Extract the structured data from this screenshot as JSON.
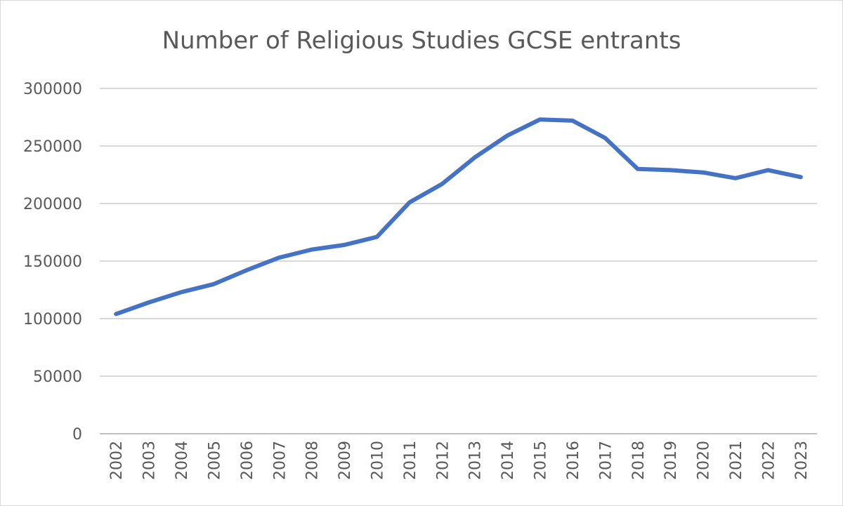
{
  "chart_data": {
    "type": "line",
    "title": "Number of Religious Studies GCSE entrants",
    "xlabel": "",
    "ylabel": "",
    "ylim": [
      0,
      300000
    ],
    "yticks": [
      0,
      50000,
      100000,
      150000,
      200000,
      250000,
      300000
    ],
    "grid": true,
    "legend": "none",
    "categories": [
      "2002",
      "2003",
      "2004",
      "2005",
      "2006",
      "2007",
      "2008",
      "2009",
      "2010",
      "2011",
      "2012",
      "2013",
      "2014",
      "2015",
      "2016",
      "2017",
      "2018",
      "2019",
      "2020",
      "2021",
      "2022",
      "2023"
    ],
    "series": [
      {
        "color": "#4472c4",
        "values": [
          104000,
          114000,
          123000,
          130000,
          142000,
          153000,
          160000,
          164000,
          171000,
          201000,
          217000,
          240000,
          259000,
          273000,
          272000,
          257000,
          230000,
          229000,
          227000,
          222000,
          229000,
          223000
        ]
      }
    ]
  }
}
